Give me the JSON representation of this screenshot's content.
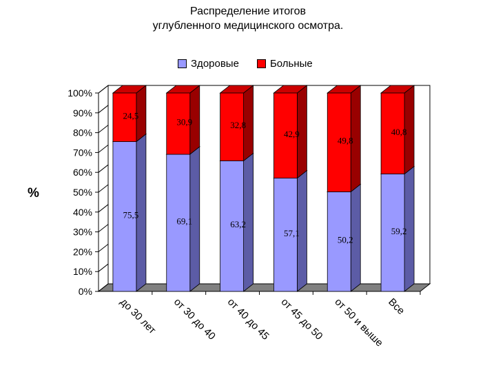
{
  "chart_data": {
    "type": "bar",
    "stacked": true,
    "percent_stacked": true,
    "three_d": true,
    "title_lines": [
      "Распределение итогов",
      "углубленного медицинского осмотра."
    ],
    "ylabel": "%",
    "xlabel": "",
    "categories": [
      "до 30 лет",
      "от 30 до 40",
      "от 40 до 45",
      "от 45 до 50",
      "от 50 и выше",
      "Все"
    ],
    "series": [
      {
        "name": "Здоровые",
        "values": [
          75.5,
          69.1,
          63.2,
          57.1,
          50.2,
          59.2
        ],
        "labels": [
          "75,5",
          "69,1",
          "63,2",
          "57,1",
          "50,2",
          "59,2"
        ]
      },
      {
        "name": "Больные",
        "values": [
          24.5,
          30.9,
          32.8,
          42.9,
          49.8,
          40.8
        ],
        "labels": [
          "24,5",
          "30,9",
          "32,8",
          "42,9",
          "49,8",
          "40,8"
        ]
      }
    ],
    "yticks": [
      "0%",
      "10%",
      "20%",
      "30%",
      "40%",
      "50%",
      "60%",
      "70%",
      "80%",
      "90%",
      "100%"
    ],
    "ylim": [
      0,
      100
    ],
    "legend_position": "top",
    "grid": false,
    "colors": {
      "healthy": "#9999ff",
      "healthy_side": "#5c5ca6",
      "healthy_top": "#b3b3ff",
      "sick": "#ff0000",
      "sick_side": "#990000",
      "sick_top": "#cc0000",
      "floor": "#808080",
      "wall": "#ffffff",
      "axis": "#000000"
    }
  }
}
